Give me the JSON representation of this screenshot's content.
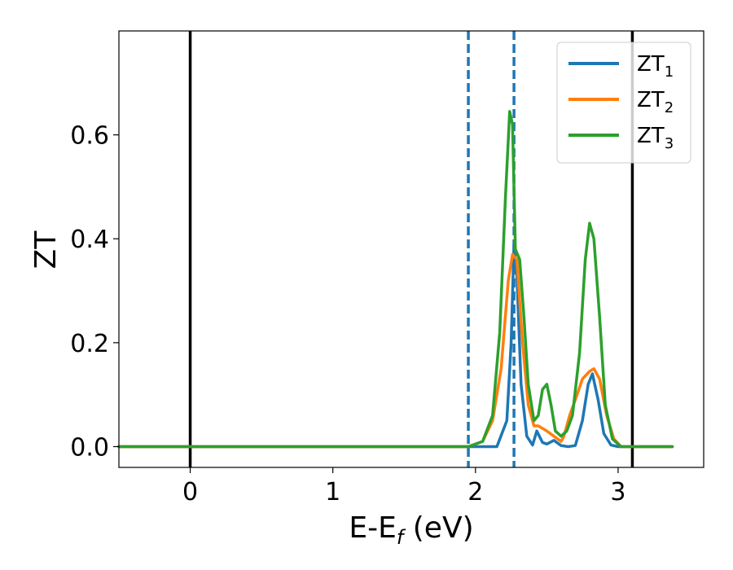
{
  "chart_data": {
    "type": "line",
    "xlabel": {
      "main": "E-E",
      "sub": "f",
      "unit": " (eV)"
    },
    "ylabel": "ZT",
    "xlim": [
      -0.5,
      3.6
    ],
    "ylim": [
      -0.04,
      0.8
    ],
    "xticks": [
      0,
      1,
      2,
      3
    ],
    "xtick_labels": [
      "0",
      "1",
      "2",
      "3"
    ],
    "yticks": [
      0.0,
      0.2,
      0.4,
      0.6
    ],
    "ytick_labels": [
      "0.0",
      "0.2",
      "0.4",
      "0.6"
    ],
    "grid": false,
    "legend_position": "top-right",
    "vlines_solid": [
      0.0,
      3.1
    ],
    "vlines_dashed": [
      1.95,
      2.27
    ],
    "series": [
      {
        "name": {
          "main": "ZT",
          "sub": "1"
        },
        "color": "#1f77b4",
        "x": [
          -0.5,
          2.0,
          2.15,
          2.22,
          2.25,
          2.27,
          2.29,
          2.32,
          2.36,
          2.4,
          2.43,
          2.47,
          2.5,
          2.55,
          2.6,
          2.65,
          2.7,
          2.75,
          2.79,
          2.82,
          2.86,
          2.9,
          2.95,
          3.0,
          3.38
        ],
        "y": [
          0.0,
          0.0,
          0.0,
          0.05,
          0.2,
          0.39,
          0.33,
          0.12,
          0.02,
          0.003,
          0.03,
          0.008,
          0.005,
          0.012,
          0.002,
          0.0,
          0.002,
          0.05,
          0.12,
          0.14,
          0.09,
          0.025,
          0.003,
          0.0,
          0.0
        ]
      },
      {
        "name": {
          "main": "ZT",
          "sub": "2"
        },
        "color": "#ff7f0e",
        "x": [
          -0.5,
          1.95,
          2.05,
          2.12,
          2.18,
          2.23,
          2.26,
          2.29,
          2.33,
          2.37,
          2.41,
          2.44,
          2.5,
          2.55,
          2.6,
          2.62,
          2.66,
          2.7,
          2.75,
          2.8,
          2.83,
          2.87,
          2.92,
          2.97,
          3.02,
          3.38
        ],
        "y": [
          0.0,
          0.0,
          0.01,
          0.05,
          0.15,
          0.32,
          0.37,
          0.36,
          0.2,
          0.08,
          0.04,
          0.04,
          0.03,
          0.02,
          0.01,
          0.02,
          0.06,
          0.09,
          0.13,
          0.145,
          0.15,
          0.13,
          0.06,
          0.015,
          0.0,
          0.0
        ]
      },
      {
        "name": {
          "main": "ZT",
          "sub": "3"
        },
        "color": "#2ca02c",
        "x": [
          -0.5,
          1.95,
          2.05,
          2.12,
          2.17,
          2.21,
          2.24,
          2.26,
          2.28,
          2.31,
          2.34,
          2.37,
          2.41,
          2.44,
          2.47,
          2.5,
          2.53,
          2.56,
          2.6,
          2.64,
          2.68,
          2.73,
          2.77,
          2.8,
          2.83,
          2.87,
          2.91,
          2.96,
          3.02,
          3.38
        ],
        "y": [
          0.0,
          0.0,
          0.01,
          0.06,
          0.22,
          0.48,
          0.645,
          0.62,
          0.38,
          0.36,
          0.25,
          0.12,
          0.05,
          0.06,
          0.11,
          0.12,
          0.08,
          0.03,
          0.02,
          0.03,
          0.06,
          0.18,
          0.36,
          0.43,
          0.4,
          0.25,
          0.08,
          0.015,
          0.0,
          0.0
        ]
      }
    ]
  }
}
